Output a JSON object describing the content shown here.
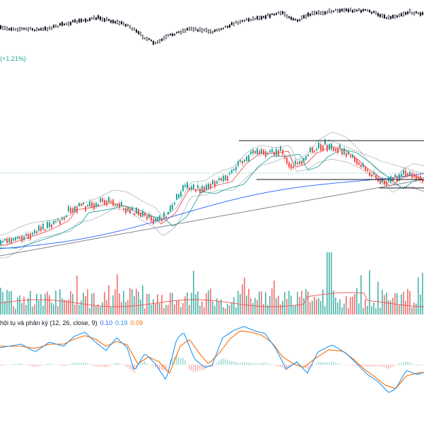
{
  "colors": {
    "up": "#26a69a",
    "down": "#ef5350",
    "upper_candle": "#000000",
    "ma_fast": "#ef5350",
    "ma_mid": "#26a69a",
    "ma_slow": "#2962ff",
    "ma_long": "#787b86",
    "bands": "#b2b5be",
    "macd_line": "#2196f3",
    "signal_line": "#ff6d00",
    "vol_ma": "#ef5350",
    "price_line": "#26a69a"
  },
  "header": {
    "change_pct": "(+1.21%)"
  },
  "macd_legend": {
    "text": "hội tụ và phân kỳ (12, 26, close, 9)",
    "value1": "0.10",
    "value2": "0.19",
    "value3": "0.09"
  },
  "chart_data": [
    {
      "type": "candlestick",
      "panel": "overview",
      "anchors": [
        [
          0,
          40
        ],
        [
          60,
          42
        ],
        [
          100,
          32
        ],
        [
          140,
          25
        ],
        [
          160,
          30
        ],
        [
          180,
          35
        ],
        [
          200,
          50
        ],
        [
          220,
          62
        ],
        [
          240,
          50
        ],
        [
          270,
          40
        ],
        [
          300,
          45
        ],
        [
          340,
          30
        ],
        [
          380,
          22
        ],
        [
          400,
          18
        ],
        [
          420,
          30
        ],
        [
          440,
          20
        ],
        [
          480,
          14
        ],
        [
          520,
          15
        ],
        [
          550,
          25
        ],
        [
          580,
          17
        ],
        [
          600,
          20
        ]
      ]
    },
    {
      "type": "candlestick",
      "panel": "price",
      "anchors": [
        [
          0,
          345
        ],
        [
          30,
          335
        ],
        [
          60,
          325
        ],
        [
          90,
          310
        ],
        [
          100,
          295
        ],
        [
          130,
          290
        ],
        [
          150,
          285
        ],
        [
          170,
          290
        ],
        [
          190,
          300
        ],
        [
          210,
          305
        ],
        [
          220,
          315
        ],
        [
          240,
          300
        ],
        [
          260,
          265
        ],
        [
          280,
          268
        ],
        [
          300,
          260
        ],
        [
          320,
          255
        ],
        [
          340,
          230
        ],
        [
          360,
          215
        ],
        [
          380,
          215
        ],
        [
          400,
          212
        ],
        [
          410,
          235
        ],
        [
          425,
          230
        ],
        [
          440,
          215
        ],
        [
          460,
          205
        ],
        [
          480,
          210
        ],
        [
          500,
          225
        ],
        [
          510,
          235
        ],
        [
          525,
          245
        ],
        [
          545,
          262
        ],
        [
          560,
          250
        ],
        [
          575,
          245
        ],
        [
          590,
          252
        ],
        [
          600,
          260
        ]
      ],
      "support_resistance": [
        {
          "x1": 338,
          "x2": 600,
          "y": 199
        },
        {
          "x1": 363,
          "x2": 600,
          "y": 254
        },
        {
          "x1": 537,
          "x2": 600,
          "y": 266
        }
      ],
      "price_line_y": 245
    },
    {
      "type": "bar",
      "panel": "volume",
      "baseline_y": 445
    },
    {
      "type": "line",
      "panel": "macd",
      "series": [
        {
          "role": "macd",
          "anchors": [
            [
              0,
              492
            ],
            [
              30,
              487
            ],
            [
              50,
              498
            ],
            [
              70,
              484
            ],
            [
              90,
              490
            ],
            [
              105,
              476
            ],
            [
              120,
              470
            ],
            [
              135,
              484
            ],
            [
              150,
              496
            ],
            [
              165,
              478
            ],
            [
              180,
              492
            ],
            [
              190,
              525
            ],
            [
              205,
              500
            ],
            [
              220,
              515
            ],
            [
              235,
              538
            ],
            [
              250,
              480
            ],
            [
              260,
              470
            ],
            [
              275,
              508
            ],
            [
              290,
              520
            ],
            [
              300,
              517
            ],
            [
              315,
              478
            ],
            [
              330,
              468
            ],
            [
              345,
              462
            ],
            [
              360,
              468
            ],
            [
              375,
              472
            ],
            [
              390,
              493
            ],
            [
              405,
              522
            ],
            [
              420,
              512
            ],
            [
              435,
              528
            ],
            [
              450,
              498
            ],
            [
              470,
              488
            ],
            [
              490,
              500
            ],
            [
              505,
              515
            ],
            [
              520,
              530
            ],
            [
              535,
              540
            ],
            [
              550,
              556
            ],
            [
              560,
              550
            ],
            [
              575,
              524
            ],
            [
              590,
              530
            ],
            [
              600,
              527
            ]
          ]
        },
        {
          "role": "signal",
          "anchors": [
            [
              0,
              490
            ],
            [
              30,
              490
            ],
            [
              50,
              493
            ],
            [
              70,
              487
            ],
            [
              90,
              487
            ],
            [
              105,
              480
            ],
            [
              120,
              475
            ],
            [
              135,
              480
            ],
            [
              150,
              490
            ],
            [
              165,
              483
            ],
            [
              180,
              488
            ],
            [
              195,
              515
            ],
            [
              210,
              505
            ],
            [
              225,
              512
            ],
            [
              240,
              528
            ],
            [
              255,
              490
            ],
            [
              268,
              480
            ],
            [
              282,
              500
            ],
            [
              295,
              515
            ],
            [
              310,
              500
            ],
            [
              325,
              480
            ],
            [
              340,
              468
            ],
            [
              355,
              470
            ],
            [
              370,
              474
            ],
            [
              385,
              485
            ],
            [
              400,
              505
            ],
            [
              415,
              515
            ],
            [
              430,
              520
            ],
            [
              445,
              508
            ],
            [
              465,
              495
            ],
            [
              485,
              497
            ],
            [
              500,
              508
            ],
            [
              515,
              522
            ],
            [
              530,
              533
            ],
            [
              545,
              545
            ],
            [
              560,
              550
            ],
            [
              575,
              532
            ],
            [
              590,
              528
            ],
            [
              600,
              527
            ]
          ]
        }
      ],
      "zero_y": 516
    }
  ]
}
